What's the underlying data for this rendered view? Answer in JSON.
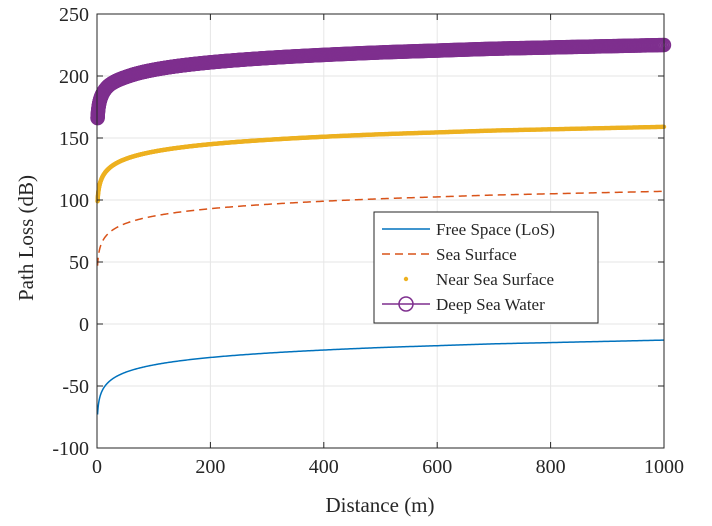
{
  "chart_data": {
    "type": "line",
    "title": "",
    "xlabel": "Distance (m)",
    "ylabel": "Path Loss (dB)",
    "xlim": [
      0,
      1000
    ],
    "ylim": [
      -100,
      250
    ],
    "xticks": [
      0,
      200,
      400,
      600,
      800,
      1000
    ],
    "yticks": [
      -100,
      -50,
      0,
      50,
      100,
      150,
      200,
      250
    ],
    "xtick_labels": [
      "0",
      "200",
      "400",
      "600",
      "800",
      "1000"
    ],
    "ytick_labels": [
      "-100",
      "-50",
      "0",
      "50",
      "100",
      "150",
      "200",
      "250"
    ],
    "grid": true,
    "legend_position": "center-right",
    "series": [
      {
        "name": "Free Space (LoS)",
        "style": "solid",
        "color": "#0072BD",
        "x": [
          1,
          2,
          5,
          10,
          20,
          50,
          100,
          200,
          300,
          400,
          500,
          600,
          700,
          800,
          900,
          1000
        ],
        "y": [
          -73,
          -67,
          -59,
          -53,
          -47,
          -39,
          -33,
          -27,
          -23.5,
          -21,
          -19,
          -17.5,
          -16,
          -15,
          -14,
          -13
        ]
      },
      {
        "name": "Sea Surface",
        "style": "dashed",
        "color": "#D95319",
        "x": [
          1,
          2,
          5,
          10,
          20,
          50,
          100,
          200,
          300,
          400,
          500,
          600,
          700,
          800,
          900,
          1000
        ],
        "y": [
          47,
          53,
          61,
          67,
          73,
          81,
          87,
          93,
          96.5,
          99,
          101,
          102.5,
          104,
          105,
          106,
          107
        ]
      },
      {
        "name": "Near Sea Surface",
        "style": "dots",
        "color": "#EDB120",
        "x": [
          1,
          2,
          5,
          10,
          20,
          50,
          100,
          200,
          300,
          400,
          500,
          600,
          700,
          800,
          900,
          1000
        ],
        "y": [
          99,
          105,
          113,
          119,
          125,
          133,
          139,
          145,
          148.5,
          151,
          153,
          154.5,
          156,
          157,
          158,
          159
        ]
      },
      {
        "name": "Deep Sea Water",
        "style": "circles",
        "color": "#7E2F8E",
        "x": [
          1,
          2,
          5,
          10,
          20,
          50,
          100,
          200,
          300,
          400,
          500,
          600,
          700,
          800,
          900,
          1000
        ],
        "y": [
          166,
          172,
          180,
          186,
          192,
          199,
          205,
          211,
          214.5,
          217,
          219,
          220.5,
          222,
          223,
          224,
          225
        ]
      }
    ]
  }
}
